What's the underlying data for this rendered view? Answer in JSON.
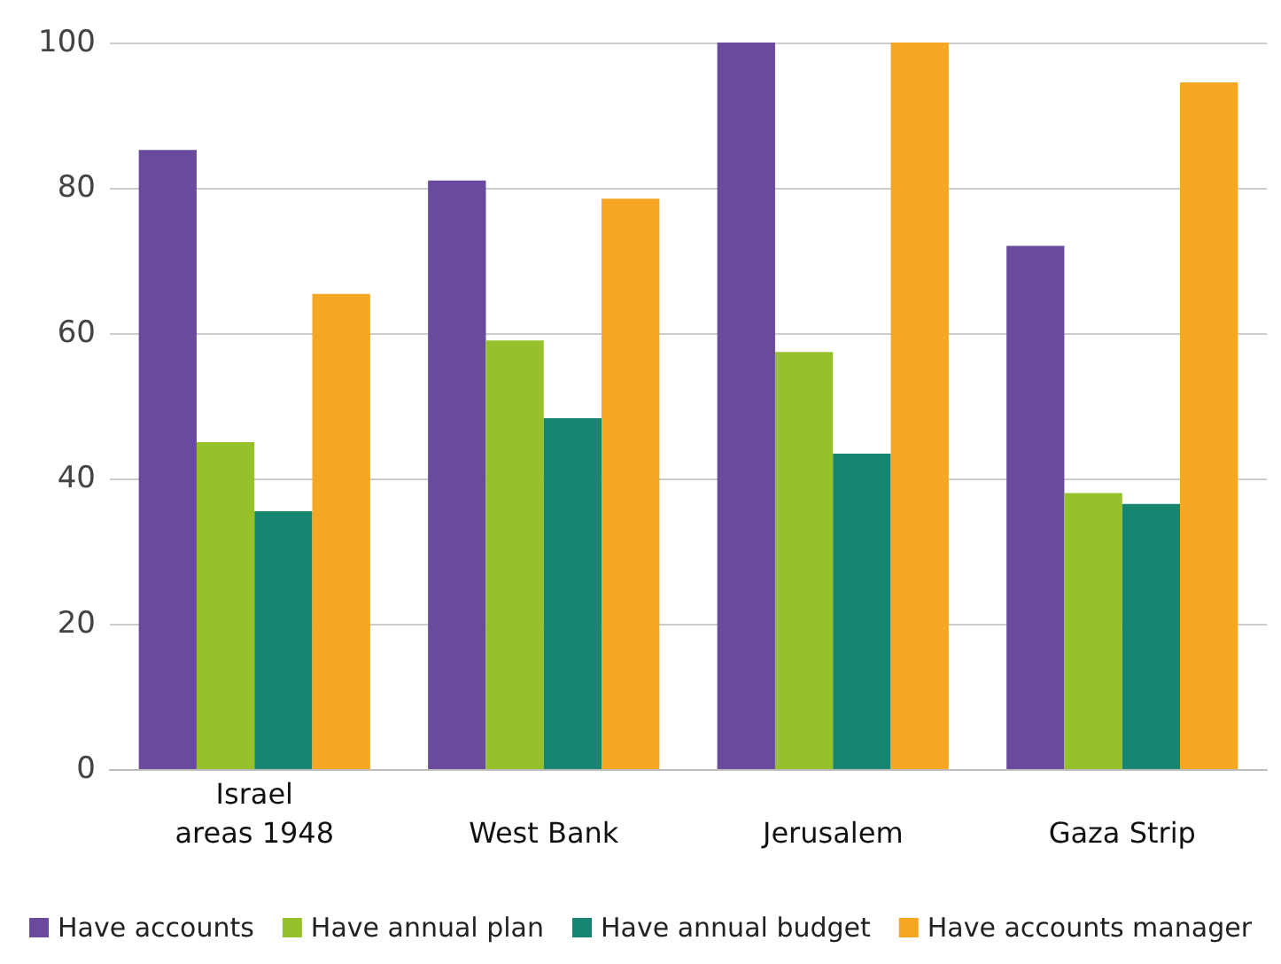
{
  "chart_data": {
    "type": "bar",
    "categories": [
      "areas 1948",
      "West Bank",
      "Jerusalem",
      "Gaza Strip"
    ],
    "series": [
      {
        "name": "Have accounts",
        "color": "#6a4a9c",
        "values": [
          85.2,
          81,
          100,
          72
        ]
      },
      {
        "name": "Have annual plan",
        "color": "#97c12b",
        "values": [
          45,
          59,
          57.4,
          38
        ]
      },
      {
        "name": "Have annual budget",
        "color": "#178670",
        "values": [
          35.5,
          48.3,
          43.4,
          36.5
        ]
      },
      {
        "name": "Have accounts manager",
        "color": "#f5a623",
        "values": [
          65.4,
          78.5,
          100,
          94.5
        ]
      }
    ],
    "ylim": [
      0,
      100
    ],
    "yticks": [
      0,
      20,
      40,
      60,
      80,
      100
    ],
    "grid": "y",
    "legend": "bottom",
    "annotations": [
      "Israel"
    ]
  }
}
